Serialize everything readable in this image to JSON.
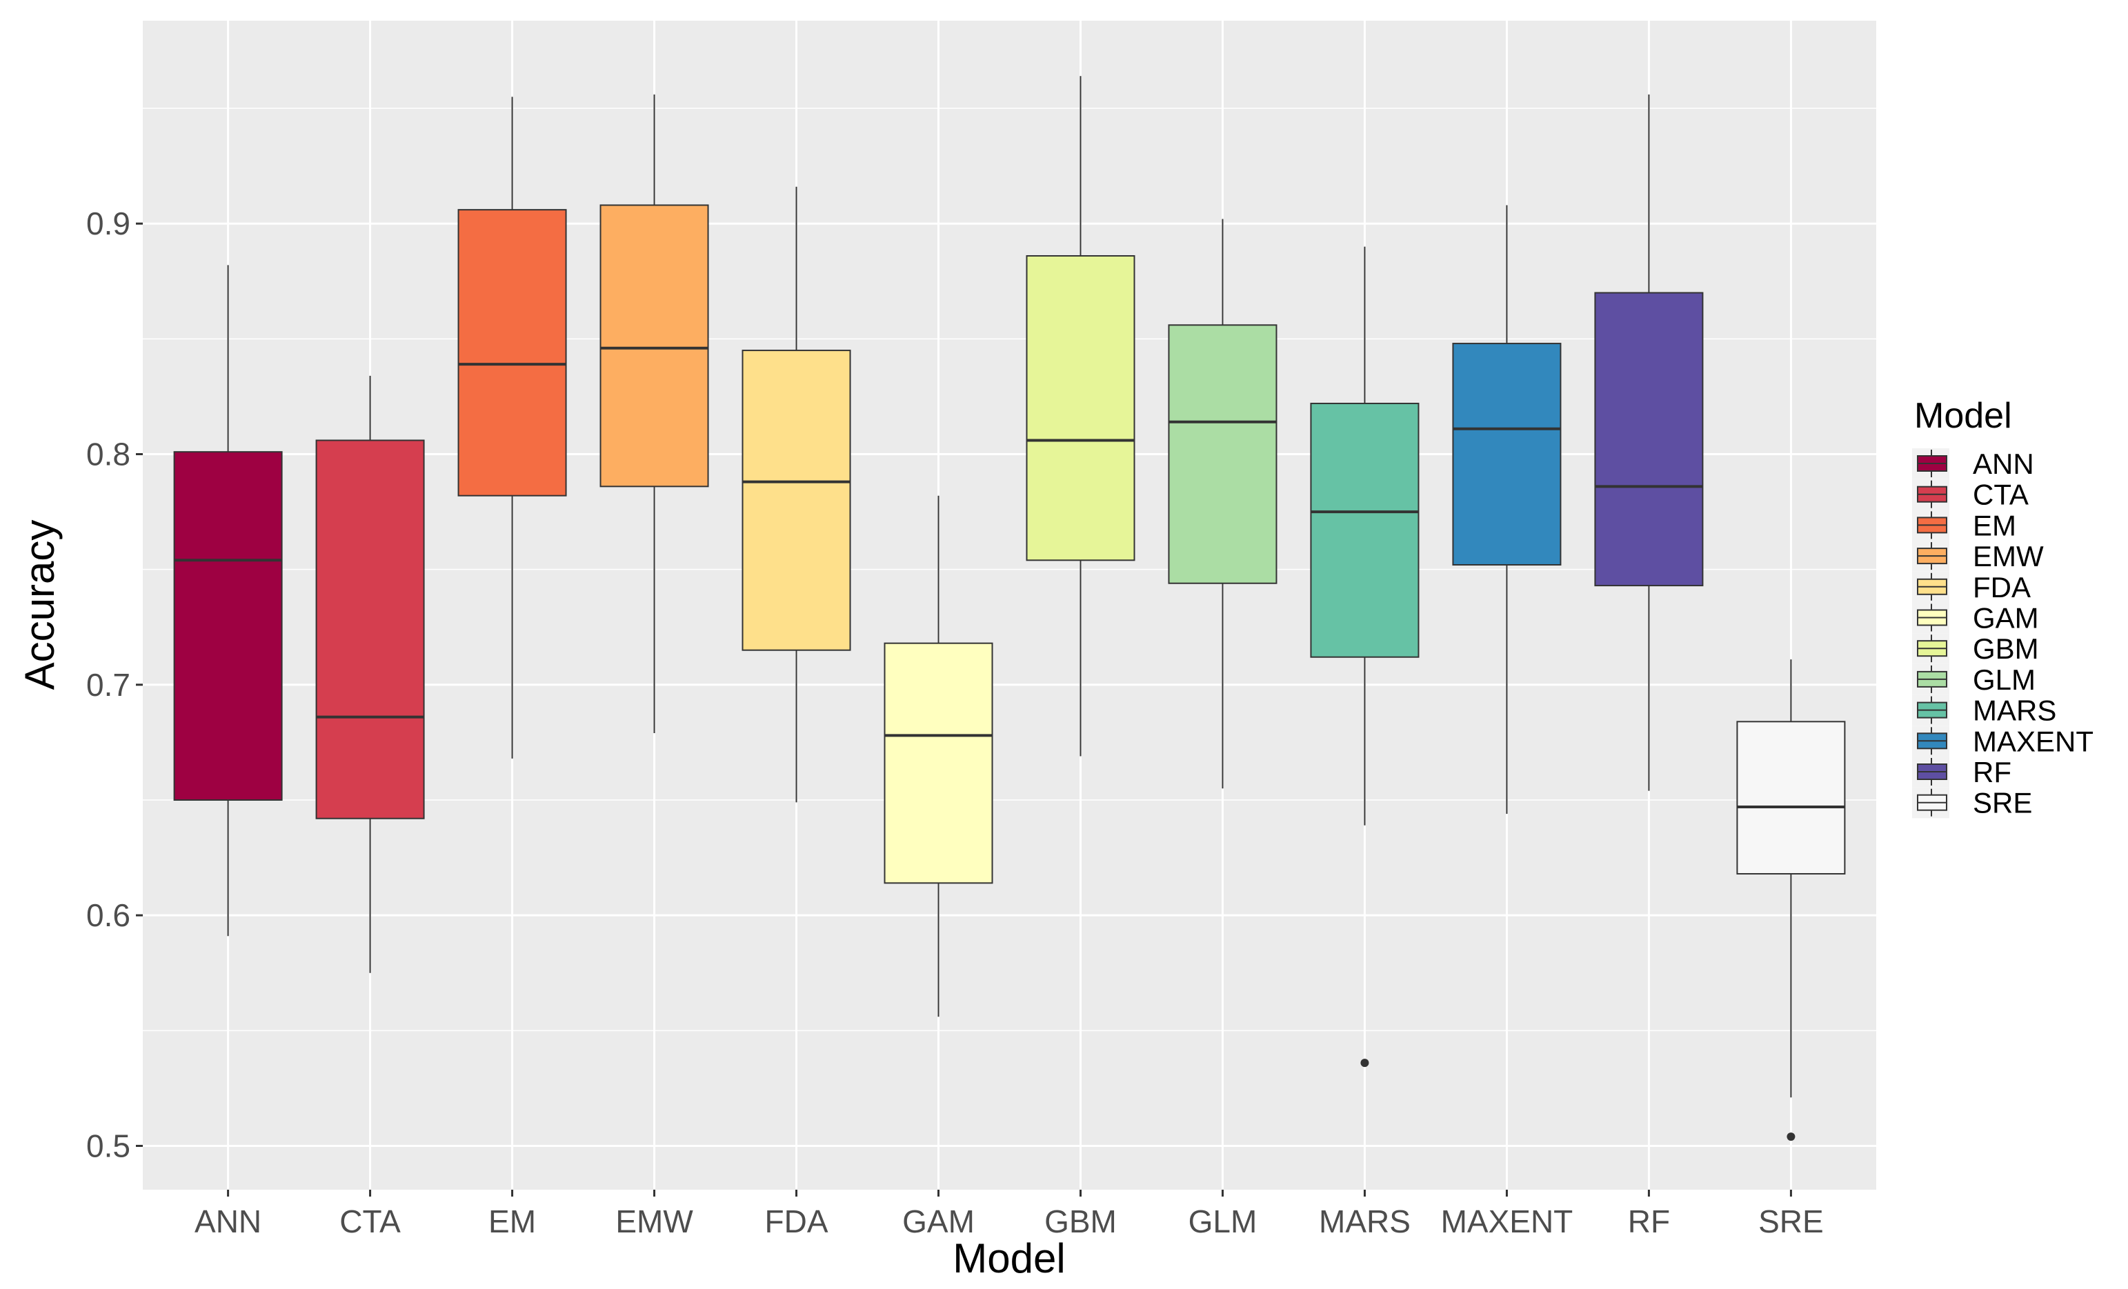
{
  "chart_data": {
    "type": "boxplot",
    "title": "",
    "xlabel": "Model",
    "ylabel": "Accuracy",
    "ylim": [
      0.481,
      0.988
    ],
    "yticks": [
      0.5,
      0.6,
      0.7,
      0.8,
      0.9
    ],
    "ytick_labels": [
      "0.5",
      "0.6",
      "0.7",
      "0.8",
      "0.9"
    ],
    "grid": true,
    "legend": {
      "title": "Model",
      "placement": "right"
    },
    "categories": [
      "ANN",
      "CTA",
      "EM",
      "EMW",
      "FDA",
      "GAM",
      "GBM",
      "GLM",
      "MARS",
      "MAXENT",
      "RF",
      "SRE"
    ],
    "colors": [
      "#9E0142",
      "#D53E4F",
      "#F46D43",
      "#FDAE61",
      "#FEE08B",
      "#FFFFBF",
      "#E6F598",
      "#ABDDA4",
      "#66C2A5",
      "#3288BD",
      "#5E4FA2",
      "#F7F7F7"
    ],
    "boxes": [
      {
        "min": 0.591,
        "q1": 0.65,
        "median": 0.754,
        "q3": 0.801,
        "max": 0.882,
        "outliers": []
      },
      {
        "min": 0.575,
        "q1": 0.642,
        "median": 0.686,
        "q3": 0.806,
        "max": 0.834,
        "outliers": []
      },
      {
        "min": 0.668,
        "q1": 0.782,
        "median": 0.839,
        "q3": 0.906,
        "max": 0.955,
        "outliers": []
      },
      {
        "min": 0.679,
        "q1": 0.786,
        "median": 0.846,
        "q3": 0.908,
        "max": 0.956,
        "outliers": []
      },
      {
        "min": 0.649,
        "q1": 0.715,
        "median": 0.788,
        "q3": 0.845,
        "max": 0.916,
        "outliers": []
      },
      {
        "min": 0.556,
        "q1": 0.614,
        "median": 0.678,
        "q3": 0.718,
        "max": 0.782,
        "outliers": []
      },
      {
        "min": 0.669,
        "q1": 0.754,
        "median": 0.806,
        "q3": 0.886,
        "max": 0.964,
        "outliers": []
      },
      {
        "min": 0.655,
        "q1": 0.744,
        "median": 0.814,
        "q3": 0.856,
        "max": 0.902,
        "outliers": []
      },
      {
        "min": 0.639,
        "q1": 0.712,
        "median": 0.775,
        "q3": 0.822,
        "max": 0.89,
        "outliers": [
          0.536
        ]
      },
      {
        "min": 0.644,
        "q1": 0.752,
        "median": 0.811,
        "q3": 0.848,
        "max": 0.908,
        "outliers": []
      },
      {
        "min": 0.654,
        "q1": 0.743,
        "median": 0.786,
        "q3": 0.87,
        "max": 0.956,
        "outliers": []
      },
      {
        "min": 0.521,
        "q1": 0.618,
        "median": 0.647,
        "q3": 0.684,
        "max": 0.711,
        "outliers": [
          0.504
        ]
      }
    ]
  }
}
